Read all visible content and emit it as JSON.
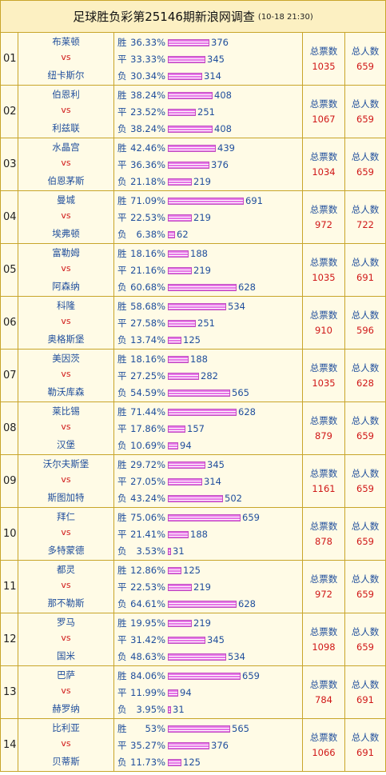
{
  "title": "足球胜负彩第25146期新浪网调查",
  "time": "(10-18 21:30)",
  "labels": {
    "win": "胜",
    "draw": "平",
    "lose": "负",
    "vs": "vs",
    "total_votes": "总票数",
    "total_people": "总人数"
  },
  "matches": [
    {
      "no": "01",
      "home": "布莱顿",
      "away": "纽卡斯尔",
      "win_pct": "36.33%",
      "win": 376,
      "draw_pct": "33.33%",
      "draw": 345,
      "lose_pct": "30.34%",
      "lose": 314,
      "votes": "1035",
      "people": "659"
    },
    {
      "no": "02",
      "home": "伯恩利",
      "away": "利兹联",
      "win_pct": "38.24%",
      "win": 408,
      "draw_pct": "23.52%",
      "draw": 251,
      "lose_pct": "38.24%",
      "lose": 408,
      "votes": "1067",
      "people": "659"
    },
    {
      "no": "03",
      "home": "水晶宫",
      "away": "伯恩茅斯",
      "win_pct": "42.46%",
      "win": 439,
      "draw_pct": "36.36%",
      "draw": 376,
      "lose_pct": "21.18%",
      "lose": 219,
      "votes": "1034",
      "people": "659"
    },
    {
      "no": "04",
      "home": "曼城",
      "away": "埃弗顿",
      "win_pct": "71.09%",
      "win": 691,
      "draw_pct": "22.53%",
      "draw": 219,
      "lose_pct": "6.38%",
      "lose": 62,
      "votes": "972",
      "people": "722"
    },
    {
      "no": "05",
      "home": "富勒姆",
      "away": "阿森纳",
      "win_pct": "18.16%",
      "win": 188,
      "draw_pct": "21.16%",
      "draw": 219,
      "lose_pct": "60.68%",
      "lose": 628,
      "votes": "1035",
      "people": "691"
    },
    {
      "no": "06",
      "home": "科隆",
      "away": "奥格斯堡",
      "win_pct": "58.68%",
      "win": 534,
      "draw_pct": "27.58%",
      "draw": 251,
      "lose_pct": "13.74%",
      "lose": 125,
      "votes": "910",
      "people": "596"
    },
    {
      "no": "07",
      "home": "美因茨",
      "away": "勒沃库森",
      "win_pct": "18.16%",
      "win": 188,
      "draw_pct": "27.25%",
      "draw": 282,
      "lose_pct": "54.59%",
      "lose": 565,
      "votes": "1035",
      "people": "628"
    },
    {
      "no": "08",
      "home": "莱比锡",
      "away": "汉堡",
      "win_pct": "71.44%",
      "win": 628,
      "draw_pct": "17.86%",
      "draw": 157,
      "lose_pct": "10.69%",
      "lose": 94,
      "votes": "879",
      "people": "659"
    },
    {
      "no": "09",
      "home": "沃尔夫斯堡",
      "away": "斯图加特",
      "win_pct": "29.72%",
      "win": 345,
      "draw_pct": "27.05%",
      "draw": 314,
      "lose_pct": "43.24%",
      "lose": 502,
      "votes": "1161",
      "people": "659"
    },
    {
      "no": "10",
      "home": "拜仁",
      "away": "多特蒙德",
      "win_pct": "75.06%",
      "win": 659,
      "draw_pct": "21.41%",
      "draw": 188,
      "lose_pct": "3.53%",
      "lose": 31,
      "votes": "878",
      "people": "659"
    },
    {
      "no": "11",
      "home": "都灵",
      "away": "那不勒斯",
      "win_pct": "12.86%",
      "win": 125,
      "draw_pct": "22.53%",
      "draw": 219,
      "lose_pct": "64.61%",
      "lose": 628,
      "votes": "972",
      "people": "659"
    },
    {
      "no": "12",
      "home": "罗马",
      "away": "国米",
      "win_pct": "19.95%",
      "win": 219,
      "draw_pct": "31.42%",
      "draw": 345,
      "lose_pct": "48.63%",
      "lose": 534,
      "votes": "1098",
      "people": "659"
    },
    {
      "no": "13",
      "home": "巴萨",
      "away": "赫罗纳",
      "win_pct": "84.06%",
      "win": 659,
      "draw_pct": "11.99%",
      "draw": 94,
      "lose_pct": "3.95%",
      "lose": 31,
      "votes": "784",
      "people": "691"
    },
    {
      "no": "14",
      "home": "比利亚",
      "away": "贝蒂斯",
      "win_pct": "53%",
      "win": 565,
      "draw_pct": "35.27%",
      "draw": 376,
      "lose_pct": "11.73%",
      "lose": 125,
      "votes": "1066",
      "people": "691"
    }
  ]
}
